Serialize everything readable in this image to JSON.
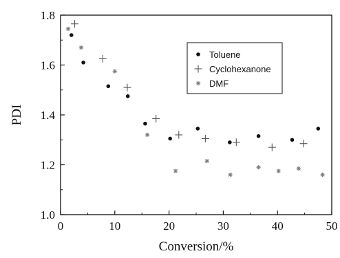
{
  "chart_data": {
    "type": "scatter",
    "title": "",
    "xlabel": "Conversion/%",
    "ylabel": "PDI",
    "xlim": [
      0,
      50
    ],
    "ylim": [
      1.0,
      1.8
    ],
    "xticks": [
      "0",
      "10",
      "20",
      "30",
      "40",
      "50"
    ],
    "yticks": [
      "1.0",
      "1.2",
      "1.4",
      "1.6",
      "1.8"
    ],
    "grid": false,
    "legend_position": "top-right",
    "series": [
      {
        "name": "Toluene",
        "marker": "dot",
        "color": "#111111",
        "points": [
          {
            "x": 2.0,
            "y": 1.72
          },
          {
            "x": 4.2,
            "y": 1.61
          },
          {
            "x": 8.8,
            "y": 1.515
          },
          {
            "x": 12.4,
            "y": 1.475
          },
          {
            "x": 15.6,
            "y": 1.365
          },
          {
            "x": 20.2,
            "y": 1.305
          },
          {
            "x": 25.3,
            "y": 1.345
          },
          {
            "x": 31.2,
            "y": 1.29
          },
          {
            "x": 36.5,
            "y": 1.315
          },
          {
            "x": 42.7,
            "y": 1.3
          },
          {
            "x": 47.5,
            "y": 1.345
          }
        ]
      },
      {
        "name": "Cyclohexanone",
        "marker": "plus",
        "color": "#555555",
        "points": [
          {
            "x": 2.6,
            "y": 1.765
          },
          {
            "x": 7.8,
            "y": 1.625
          },
          {
            "x": 12.3,
            "y": 1.51
          },
          {
            "x": 17.6,
            "y": 1.385
          },
          {
            "x": 21.8,
            "y": 1.32
          },
          {
            "x": 26.7,
            "y": 1.305
          },
          {
            "x": 32.4,
            "y": 1.29
          },
          {
            "x": 39.0,
            "y": 1.27
          },
          {
            "x": 44.8,
            "y": 1.285
          }
        ]
      },
      {
        "name": "DMF",
        "marker": "asterisk",
        "color": "#777777",
        "points": [
          {
            "x": 1.4,
            "y": 1.745
          },
          {
            "x": 3.8,
            "y": 1.67
          },
          {
            "x": 10.0,
            "y": 1.575
          },
          {
            "x": 16.0,
            "y": 1.32
          },
          {
            "x": 21.2,
            "y": 1.175
          },
          {
            "x": 27.0,
            "y": 1.215
          },
          {
            "x": 31.3,
            "y": 1.16
          },
          {
            "x": 36.5,
            "y": 1.19
          },
          {
            "x": 40.2,
            "y": 1.175
          },
          {
            "x": 43.9,
            "y": 1.185
          },
          {
            "x": 48.3,
            "y": 1.16
          }
        ]
      }
    ]
  }
}
